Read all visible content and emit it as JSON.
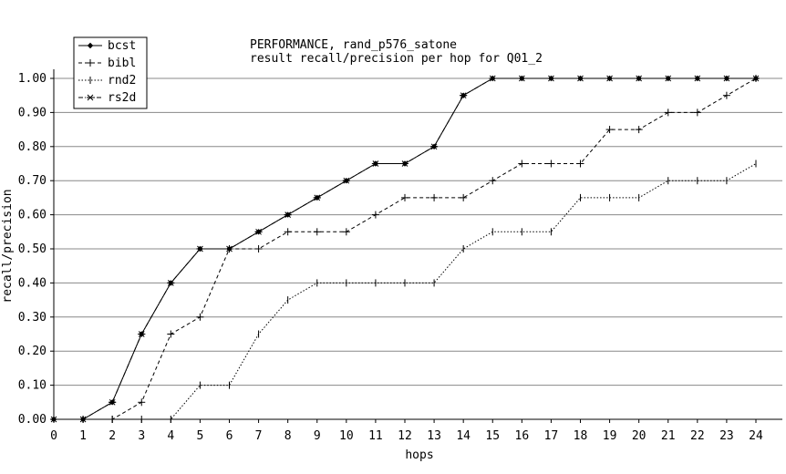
{
  "chart_data": {
    "type": "line",
    "title": "PERFORMANCE, rand_p576_satone",
    "subtitle": "result recall/precision per hop for Q01_2",
    "xlabel": "hops",
    "ylabel": "recall/precision",
    "x": [
      0,
      1,
      2,
      3,
      4,
      5,
      6,
      7,
      8,
      9,
      10,
      11,
      12,
      13,
      14,
      15,
      16,
      17,
      18,
      19,
      20,
      21,
      22,
      23,
      24
    ],
    "xlim": [
      0,
      24
    ],
    "ylim": [
      0,
      1.0
    ],
    "yticks": [
      "0.00",
      "0.10",
      "0.20",
      "0.30",
      "0.40",
      "0.50",
      "0.60",
      "0.70",
      "0.80",
      "0.90",
      "1.00"
    ],
    "xticks": [
      "0",
      "1",
      "2",
      "3",
      "4",
      "5",
      "6",
      "7",
      "8",
      "9",
      "10",
      "11",
      "12",
      "13",
      "14",
      "15",
      "16",
      "17",
      "18",
      "19",
      "20",
      "21",
      "22",
      "23",
      "24"
    ],
    "grid": "horizontal",
    "legend_position": "top-left",
    "series": [
      {
        "name": "bcst",
        "line_style": "solid",
        "marker": "diamond",
        "values": [
          0,
          0,
          0.05,
          0.25,
          0.4,
          0.5,
          0.5,
          0.55,
          0.6,
          0.65,
          0.7,
          0.75,
          0.75,
          0.8,
          0.95,
          1.0,
          1.0,
          1.0,
          1.0,
          1.0,
          1.0,
          1.0,
          1.0,
          1.0,
          1.0
        ]
      },
      {
        "name": "bibl",
        "line_style": "dashed",
        "marker": "plus",
        "values": [
          0,
          0,
          0,
          0.05,
          0.25,
          0.3,
          0.5,
          0.5,
          0.55,
          0.55,
          0.55,
          0.6,
          0.65,
          0.65,
          0.65,
          0.7,
          0.75,
          0.75,
          0.75,
          0.85,
          0.85,
          0.9,
          0.9,
          0.95,
          1.0
        ]
      },
      {
        "name": "rnd2",
        "line_style": "dotted",
        "marker": "vbar",
        "values": [
          0,
          0,
          0,
          0,
          0,
          0.1,
          0.1,
          0.25,
          0.35,
          0.4,
          0.4,
          0.4,
          0.4,
          0.4,
          0.5,
          0.55,
          0.55,
          0.55,
          0.65,
          0.65,
          0.65,
          0.7,
          0.7,
          0.7,
          0.75
        ]
      },
      {
        "name": "rs2d",
        "line_style": "dash-dot",
        "marker": "asterisk",
        "values": [
          0,
          0,
          0.05,
          0.25,
          0.4,
          0.5,
          0.5,
          0.55,
          0.6,
          0.65,
          0.7,
          0.75,
          0.75,
          0.8,
          0.95,
          1.0,
          1.0,
          1.0,
          1.0,
          1.0,
          1.0,
          1.0,
          1.0,
          1.0,
          1.0
        ]
      }
    ]
  }
}
